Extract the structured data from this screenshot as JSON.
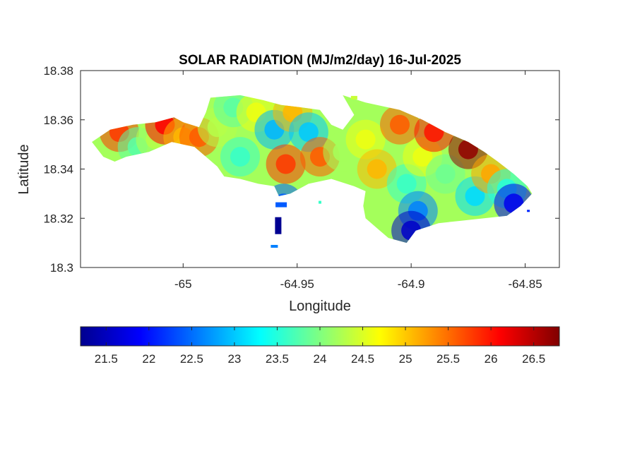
{
  "chart_data": {
    "type": "heatmap",
    "title": "SOLAR RADIATION (MJ/m2/day) 16-Jul-2025",
    "xlabel": "Longitude",
    "ylabel": "Latitude",
    "xlim": [
      -65.045,
      -64.835
    ],
    "ylim": [
      18.3,
      18.38
    ],
    "xticks": [
      -65,
      -64.95,
      -64.9,
      -64.85
    ],
    "xtick_labels": [
      "-65",
      "-64.95",
      "-64.9",
      "-64.85"
    ],
    "yticks": [
      18.3,
      18.32,
      18.34,
      18.36,
      18.38
    ],
    "ytick_labels": [
      "18.3",
      "18.32",
      "18.34",
      "18.36",
      "18.38"
    ],
    "colormap": "jet",
    "clim": [
      21.2,
      26.8
    ],
    "colorbar": {
      "location": "bottom",
      "ticks": [
        21.5,
        22,
        22.5,
        23,
        23.5,
        24,
        24.5,
        25,
        25.5,
        26,
        26.5
      ],
      "tick_labels": [
        "21.5",
        "22",
        "22.5",
        "23",
        "23.5",
        "24",
        "24.5",
        "25",
        "25.5",
        "26",
        "26.5"
      ]
    },
    "grid": false,
    "region_outline": [
      [
        -65.04,
        18.351
      ],
      [
        -65.032,
        18.356
      ],
      [
        -65.022,
        18.358
      ],
      [
        -65.012,
        18.359
      ],
      [
        -65.004,
        18.361
      ],
      [
        -65.0,
        18.359
      ],
      [
        -64.993,
        18.357
      ],
      [
        -64.99,
        18.363
      ],
      [
        -64.988,
        18.369
      ],
      [
        -64.975,
        18.37
      ],
      [
        -64.965,
        18.368
      ],
      [
        -64.957,
        18.366
      ],
      [
        -64.948,
        18.365
      ],
      [
        -64.94,
        18.364
      ],
      [
        -64.935,
        18.358
      ],
      [
        -64.93,
        18.356
      ],
      [
        -64.925,
        18.362
      ],
      [
        -64.93,
        18.37
      ],
      [
        -64.92,
        18.367
      ],
      [
        -64.915,
        18.366
      ],
      [
        -64.905,
        18.364
      ],
      [
        -64.895,
        18.36
      ],
      [
        -64.885,
        18.355
      ],
      [
        -64.875,
        18.351
      ],
      [
        -64.868,
        18.347
      ],
      [
        -64.862,
        18.343
      ],
      [
        -64.855,
        18.338
      ],
      [
        -64.849,
        18.333
      ],
      [
        -64.847,
        18.33
      ],
      [
        -64.852,
        18.325
      ],
      [
        -64.858,
        18.321
      ],
      [
        -64.868,
        18.32
      ],
      [
        -64.878,
        18.319
      ],
      [
        -64.888,
        18.318
      ],
      [
        -64.898,
        18.315
      ],
      [
        -64.902,
        18.31
      ],
      [
        -64.91,
        18.312
      ],
      [
        -64.915,
        18.316
      ],
      [
        -64.92,
        18.32
      ],
      [
        -64.921,
        18.325
      ],
      [
        -64.92,
        18.331
      ],
      [
        -64.925,
        18.333
      ],
      [
        -64.935,
        18.336
      ],
      [
        -64.945,
        18.334
      ],
      [
        -64.953,
        18.33
      ],
      [
        -64.958,
        18.329
      ],
      [
        -64.96,
        18.333
      ],
      [
        -64.967,
        18.334
      ],
      [
        -64.975,
        18.336
      ],
      [
        -64.982,
        18.337
      ],
      [
        -64.985,
        18.341
      ],
      [
        -64.99,
        18.345
      ],
      [
        -64.995,
        18.349
      ],
      [
        -65.005,
        18.351
      ],
      [
        -65.015,
        18.347
      ],
      [
        -65.025,
        18.345
      ],
      [
        -65.03,
        18.343
      ],
      [
        -65.035,
        18.345
      ],
      [
        -65.04,
        18.351
      ]
    ],
    "values": [
      {
        "lon": -65.028,
        "lat": 18.355,
        "value": 25.8
      },
      {
        "lon": -65.02,
        "lat": 18.349,
        "value": 23.8
      },
      {
        "lon": -65.012,
        "lat": 18.352,
        "value": 24.3
      },
      {
        "lon": -65.008,
        "lat": 18.358,
        "value": 26.1
      },
      {
        "lon": -65.0,
        "lat": 18.353,
        "value": 25.1
      },
      {
        "lon": -64.993,
        "lat": 18.353,
        "value": 25.6
      },
      {
        "lon": -64.985,
        "lat": 18.357,
        "value": 24.3
      },
      {
        "lon": -64.978,
        "lat": 18.365,
        "value": 23.8
      },
      {
        "lon": -64.975,
        "lat": 18.345,
        "value": 23.6
      },
      {
        "lon": -64.968,
        "lat": 18.363,
        "value": 24.6
      },
      {
        "lon": -64.96,
        "lat": 18.356,
        "value": 22.9
      },
      {
        "lon": -64.955,
        "lat": 18.342,
        "value": 25.8
      },
      {
        "lon": -64.952,
        "lat": 18.363,
        "value": 25.1
      },
      {
        "lon": -64.945,
        "lat": 18.355,
        "value": 23.0
      },
      {
        "lon": -64.94,
        "lat": 18.345,
        "value": 25.6
      },
      {
        "lon": -64.93,
        "lat": 18.347,
        "value": 24.2
      },
      {
        "lon": -64.92,
        "lat": 18.352,
        "value": 24.6
      },
      {
        "lon": -64.915,
        "lat": 18.34,
        "value": 25.1
      },
      {
        "lon": -64.905,
        "lat": 18.358,
        "value": 25.6
      },
      {
        "lon": -64.902,
        "lat": 18.334,
        "value": 23.6
      },
      {
        "lon": -64.895,
        "lat": 18.345,
        "value": 24.6
      },
      {
        "lon": -64.897,
        "lat": 18.323,
        "value": 22.6
      },
      {
        "lon": -64.9,
        "lat": 18.315,
        "value": 21.6
      },
      {
        "lon": -64.89,
        "lat": 18.355,
        "value": 26.0
      },
      {
        "lon": -64.885,
        "lat": 18.338,
        "value": 23.9
      },
      {
        "lon": -64.875,
        "lat": 18.348,
        "value": 26.7
      },
      {
        "lon": -64.872,
        "lat": 18.329,
        "value": 23.1
      },
      {
        "lon": -64.865,
        "lat": 18.338,
        "value": 25.2
      },
      {
        "lon": -64.858,
        "lat": 18.332,
        "value": 23.5
      },
      {
        "lon": -64.855,
        "lat": 18.326,
        "value": 21.8
      },
      {
        "lon": -64.956,
        "lat": 18.326,
        "value": 22.4
      },
      {
        "lon": -64.958,
        "lat": 18.318,
        "value": 21.3
      }
    ]
  }
}
